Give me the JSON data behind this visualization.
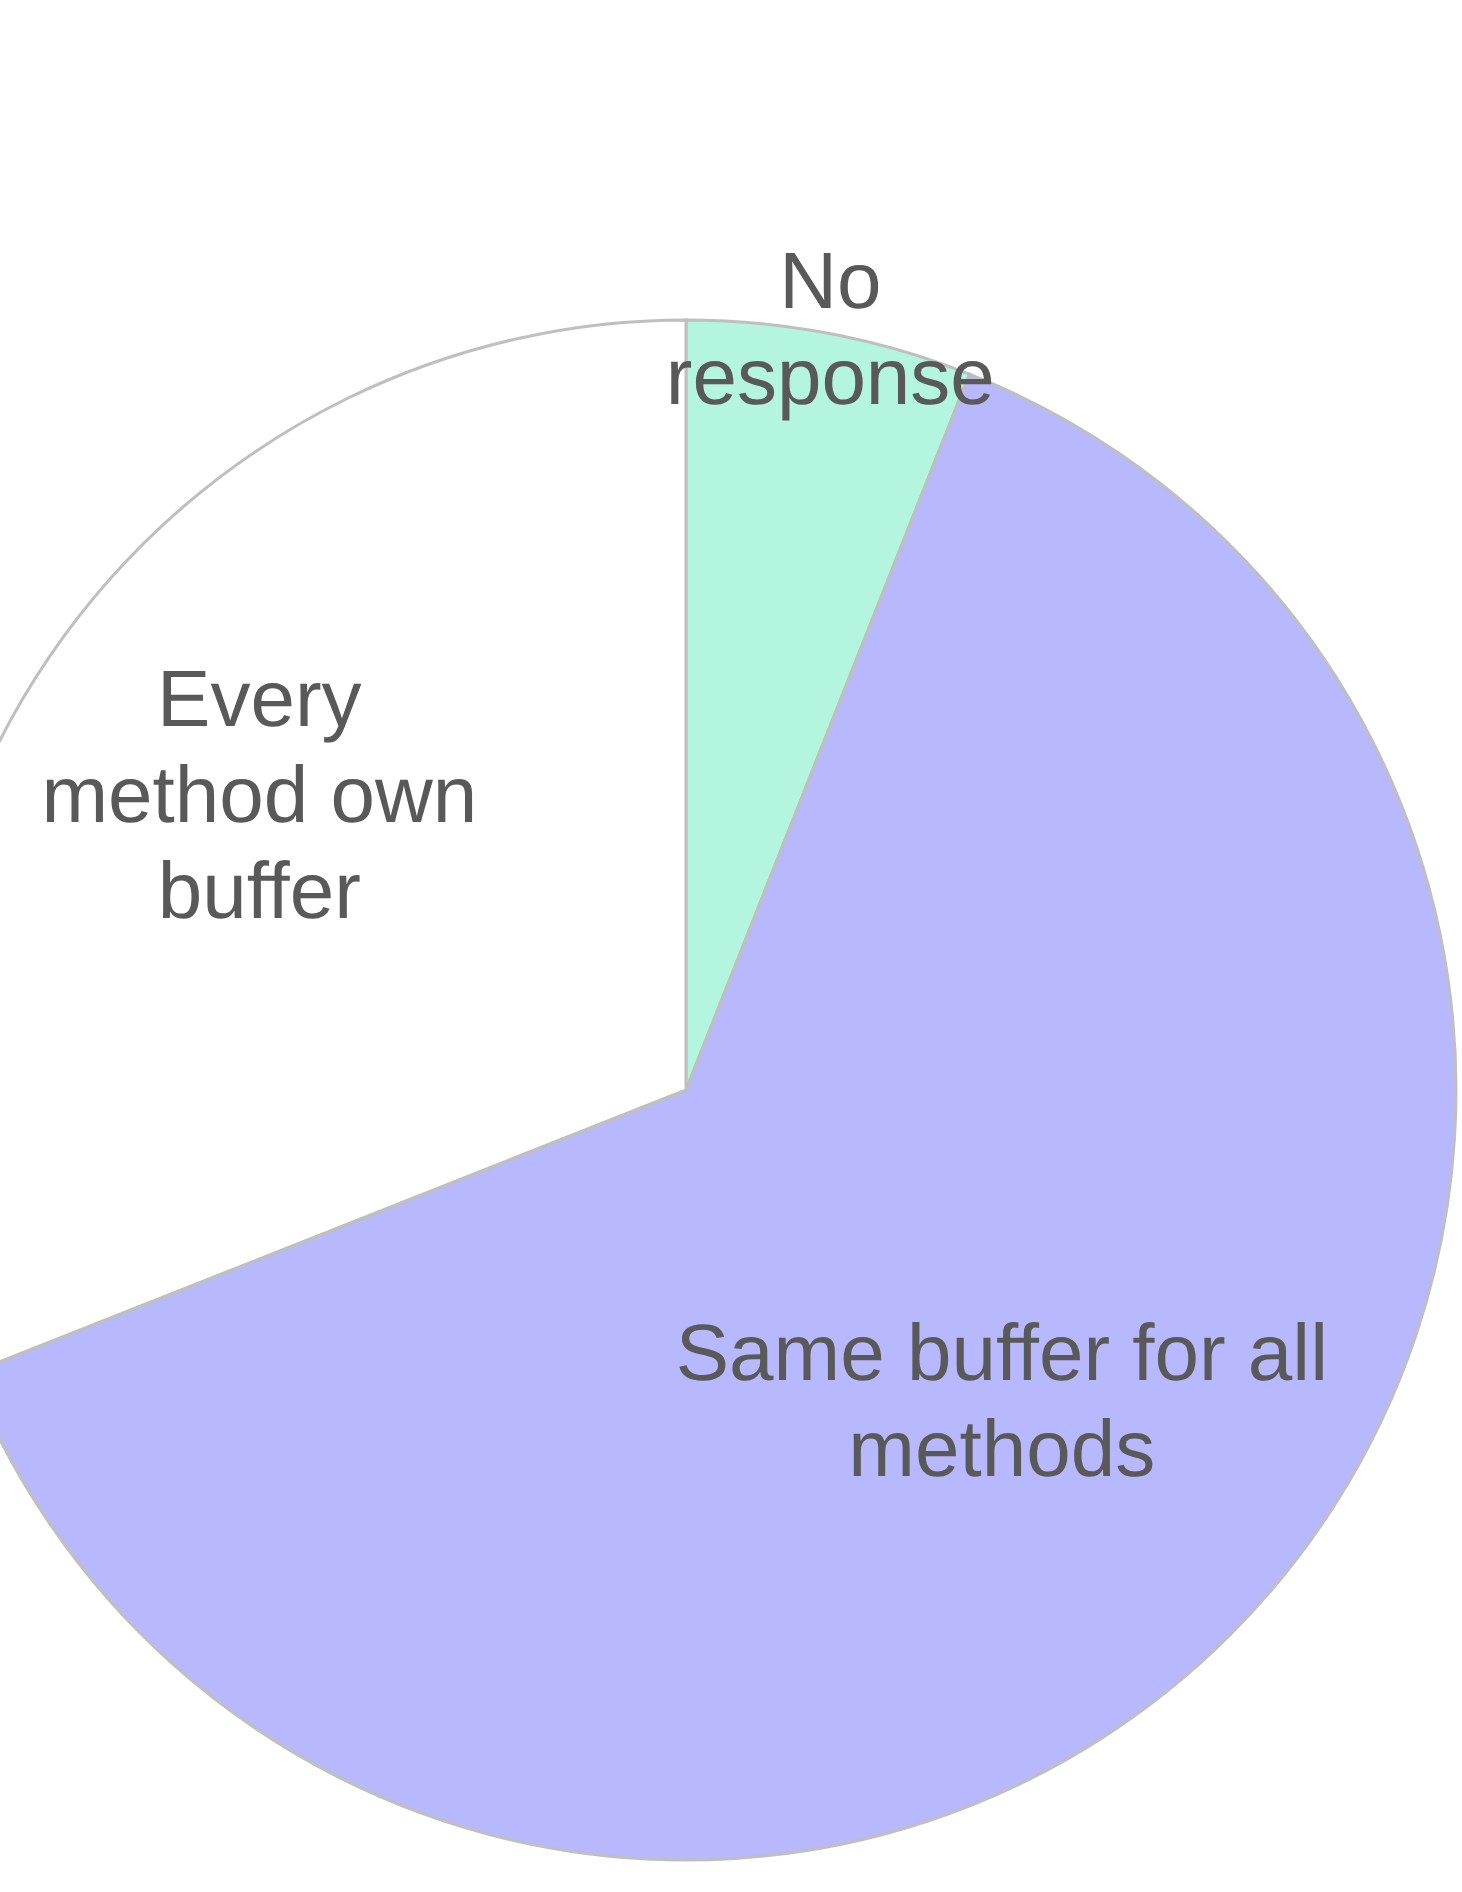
{
  "chart_data": {
    "type": "pie",
    "categories": [
      "No response",
      "Same buffer for all methods",
      "Every method own buffer"
    ],
    "values": [
      6,
      63,
      31
    ],
    "colors": [
      "#b4f5e0",
      "#b8b8ff",
      "#ffffff"
    ]
  }
}
